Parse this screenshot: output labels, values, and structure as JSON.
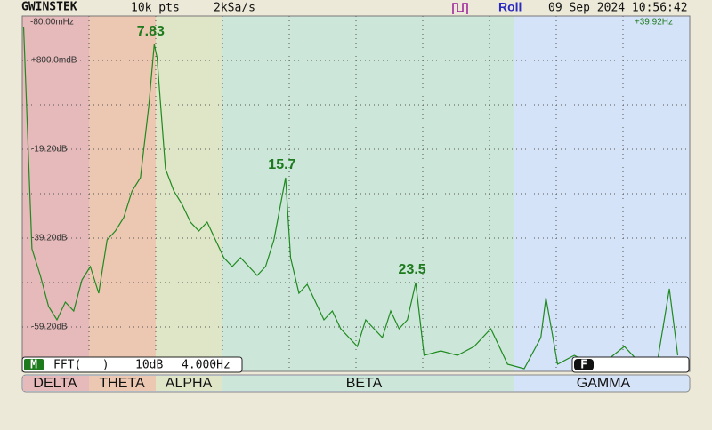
{
  "header": {
    "logo": "GWINSTEK",
    "points": "10k pts",
    "rate": "2kSa/s",
    "mode": "Roll",
    "date_time": "09 Sep 2024 10:56:42"
  },
  "x_axis": {
    "start": {
      "value": -0.08,
      "label": "-80.00mHz"
    },
    "end": {
      "value": 39.92,
      "label": "+39.92Hz"
    }
  },
  "y_axis": {
    "labels": [
      {
        "value": 0.8,
        "label": "+800.0mdB"
      },
      {
        "value": -19.2,
        "label": "-19.20dB"
      },
      {
        "value": -39.2,
        "label": "-39.20dB"
      },
      {
        "value": -59.2,
        "label": "-59.20dB"
      }
    ]
  },
  "peaks": [
    7.83,
    15.7,
    23.5
  ],
  "trace": {
    "freq_hz": [
      0,
      0.5,
      1,
      1.5,
      2,
      2.5,
      3,
      3.5,
      4,
      4.5,
      5,
      5.5,
      6,
      6.5,
      7,
      7.5,
      7.83,
      8,
      8.5,
      9,
      9.5,
      10,
      10.5,
      11,
      11.5,
      12,
      12.5,
      13,
      13.5,
      14,
      14.5,
      15,
      15.7,
      16,
      16.5,
      17,
      17.5,
      18,
      18.5,
      19,
      19.5,
      20,
      20.5,
      21,
      21.5,
      22,
      22.5,
      23,
      23.5,
      24,
      25,
      26,
      27,
      28,
      29,
      30,
      31,
      31.3,
      32,
      33,
      34,
      35,
      36,
      37,
      38,
      38.7,
      39.2
    ],
    "db": [
      8.4,
      -41.6,
      -47.6,
      -54.6,
      -57.6,
      -53.6,
      -55.6,
      -48.6,
      -45.6,
      -51.6,
      -39.6,
      -37.6,
      -34.6,
      -28.6,
      -25.6,
      -9.6,
      4.4,
      1.4,
      -23.6,
      -28.6,
      -31.6,
      -35.6,
      -37.6,
      -35.6,
      -39.6,
      -43.6,
      -45.6,
      -43.6,
      -45.6,
      -47.6,
      -45.6,
      -39.6,
      -25.6,
      -43.6,
      -51.6,
      -49.6,
      -53.6,
      -57.6,
      -55.6,
      -59.6,
      -61.6,
      -63.6,
      -57.6,
      -59.6,
      -61.6,
      -55.6,
      -59.6,
      -57.6,
      -49.2,
      -65.6,
      -64.6,
      -65.6,
      -63.6,
      -59.6,
      -67.6,
      -68.6,
      -61.6,
      -52.6,
      -67.6,
      -65.6,
      -67.6,
      -66.6,
      -63.6,
      -67.6,
      -66.6,
      -50.6,
      -65.6
    ]
  },
  "status": {
    "math": "M",
    "function": "FFT(   )",
    "scale": "10dB",
    "span": "4.000Hz",
    "filter": "F"
  },
  "bands": [
    "DELTA",
    "THETA",
    "ALPHA",
    "BETA",
    "GAMMA"
  ]
}
